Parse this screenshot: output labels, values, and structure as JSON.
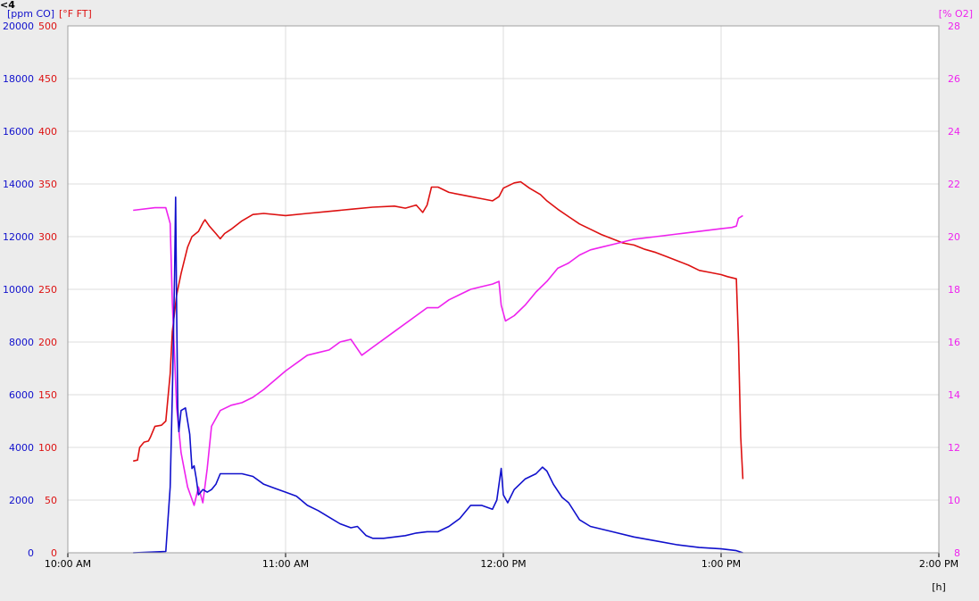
{
  "corner_label": "<4",
  "chart_data": {
    "type": "line",
    "title": "",
    "xlabel": "[h]",
    "grid": true,
    "x_ticks": [
      "10:00 AM",
      "11:00 AM",
      "12:00 PM",
      "1:00 PM",
      "2:00 PM"
    ],
    "x_range_hours": [
      10,
      14
    ],
    "axes": {
      "co": {
        "label": "[ppm CO]",
        "color": "#1010cc",
        "range": [
          0,
          20000
        ],
        "ticks": [
          0,
          2000,
          4000,
          6000,
          8000,
          10000,
          12000,
          14000,
          16000,
          18000,
          20000
        ]
      },
      "temp": {
        "label": "[°F FT]",
        "color": "#dd1111",
        "range": [
          0,
          500
        ],
        "ticks": [
          0,
          50,
          100,
          150,
          200,
          250,
          300,
          350,
          400,
          450,
          500
        ]
      },
      "o2": {
        "label": "[% O2]",
        "color": "#ee22ee",
        "range": [
          8,
          28
        ],
        "ticks": [
          8,
          10,
          12,
          14,
          16,
          18,
          20,
          22,
          24,
          26,
          28
        ]
      }
    },
    "series": [
      {
        "axis": "temp",
        "color": "#dd1111",
        "points": [
          [
            10.3,
            87
          ],
          [
            10.32,
            88
          ],
          [
            10.33,
            100
          ],
          [
            10.35,
            105
          ],
          [
            10.37,
            106
          ],
          [
            10.38,
            110
          ],
          [
            10.4,
            120
          ],
          [
            10.43,
            121
          ],
          [
            10.45,
            125
          ],
          [
            10.47,
            170
          ],
          [
            10.48,
            210
          ],
          [
            10.5,
            245
          ],
          [
            10.52,
            265
          ],
          [
            10.55,
            290
          ],
          [
            10.57,
            300
          ],
          [
            10.6,
            305
          ],
          [
            10.62,
            313
          ],
          [
            10.63,
            316
          ],
          [
            10.65,
            310
          ],
          [
            10.68,
            303
          ],
          [
            10.7,
            298
          ],
          [
            10.72,
            303
          ],
          [
            10.75,
            307
          ],
          [
            10.8,
            315
          ],
          [
            10.85,
            321
          ],
          [
            10.9,
            322
          ],
          [
            11.0,
            320
          ],
          [
            11.1,
            322
          ],
          [
            11.2,
            324
          ],
          [
            11.3,
            326
          ],
          [
            11.4,
            328
          ],
          [
            11.5,
            329
          ],
          [
            11.55,
            327
          ],
          [
            11.6,
            330
          ],
          [
            11.63,
            323
          ],
          [
            11.65,
            330
          ],
          [
            11.67,
            347
          ],
          [
            11.7,
            347
          ],
          [
            11.75,
            342
          ],
          [
            11.8,
            340
          ],
          [
            11.85,
            338
          ],
          [
            11.9,
            336
          ],
          [
            11.95,
            334
          ],
          [
            11.98,
            338
          ],
          [
            12.0,
            346
          ],
          [
            12.05,
            351
          ],
          [
            12.08,
            352
          ],
          [
            12.12,
            346
          ],
          [
            12.17,
            340
          ],
          [
            12.2,
            334
          ],
          [
            12.25,
            326
          ],
          [
            12.3,
            319
          ],
          [
            12.35,
            312
          ],
          [
            12.4,
            307
          ],
          [
            12.45,
            302
          ],
          [
            12.5,
            298
          ],
          [
            12.55,
            294
          ],
          [
            12.6,
            292
          ],
          [
            12.65,
            288
          ],
          [
            12.7,
            285
          ],
          [
            12.75,
            281
          ],
          [
            12.8,
            277
          ],
          [
            12.85,
            273
          ],
          [
            12.9,
            268
          ],
          [
            12.95,
            266
          ],
          [
            13.0,
            264
          ],
          [
            13.03,
            262
          ],
          [
            13.07,
            260
          ],
          [
            13.08,
            200
          ],
          [
            13.09,
            110
          ],
          [
            13.1,
            70
          ]
        ]
      },
      {
        "axis": "o2",
        "color": "#ee22ee",
        "points": [
          [
            10.3,
            21.0
          ],
          [
            10.4,
            21.1
          ],
          [
            10.45,
            21.1
          ],
          [
            10.47,
            20.5
          ],
          [
            10.48,
            17.5
          ],
          [
            10.5,
            13.5
          ],
          [
            10.52,
            11.8
          ],
          [
            10.55,
            10.5
          ],
          [
            10.58,
            9.8
          ],
          [
            10.6,
            10.5
          ],
          [
            10.62,
            9.9
          ],
          [
            10.64,
            11.2
          ],
          [
            10.66,
            12.8
          ],
          [
            10.7,
            13.4
          ],
          [
            10.75,
            13.6
          ],
          [
            10.8,
            13.7
          ],
          [
            10.85,
            13.9
          ],
          [
            10.9,
            14.2
          ],
          [
            11.0,
            14.9
          ],
          [
            11.1,
            15.5
          ],
          [
            11.15,
            15.6
          ],
          [
            11.2,
            15.7
          ],
          [
            11.25,
            16.0
          ],
          [
            11.3,
            16.1
          ],
          [
            11.35,
            15.5
          ],
          [
            11.4,
            15.8
          ],
          [
            11.5,
            16.4
          ],
          [
            11.6,
            17.0
          ],
          [
            11.65,
            17.3
          ],
          [
            11.7,
            17.3
          ],
          [
            11.75,
            17.6
          ],
          [
            11.8,
            17.8
          ],
          [
            11.85,
            18.0
          ],
          [
            11.9,
            18.1
          ],
          [
            11.95,
            18.2
          ],
          [
            11.98,
            18.3
          ],
          [
            11.99,
            17.4
          ],
          [
            12.01,
            16.8
          ],
          [
            12.05,
            17.0
          ],
          [
            12.1,
            17.4
          ],
          [
            12.15,
            17.9
          ],
          [
            12.2,
            18.3
          ],
          [
            12.25,
            18.8
          ],
          [
            12.3,
            19.0
          ],
          [
            12.35,
            19.3
          ],
          [
            12.4,
            19.5
          ],
          [
            12.45,
            19.6
          ],
          [
            12.5,
            19.7
          ],
          [
            12.55,
            19.8
          ],
          [
            12.6,
            19.9
          ],
          [
            12.7,
            20.0
          ],
          [
            12.8,
            20.1
          ],
          [
            12.9,
            20.2
          ],
          [
            13.0,
            20.3
          ],
          [
            13.05,
            20.35
          ],
          [
            13.07,
            20.4
          ],
          [
            13.08,
            20.7
          ],
          [
            13.1,
            20.8
          ]
        ]
      },
      {
        "axis": "co",
        "color": "#1010cc",
        "points": [
          [
            10.3,
            0
          ],
          [
            10.45,
            50
          ],
          [
            10.47,
            2500
          ],
          [
            10.48,
            6000
          ],
          [
            10.49,
            10500
          ],
          [
            10.495,
            13500
          ],
          [
            10.5,
            9000
          ],
          [
            10.505,
            5500
          ],
          [
            10.51,
            4600
          ],
          [
            10.52,
            5400
          ],
          [
            10.54,
            5500
          ],
          [
            10.56,
            4500
          ],
          [
            10.57,
            3200
          ],
          [
            10.58,
            3300
          ],
          [
            10.59,
            2800
          ],
          [
            10.6,
            2200
          ],
          [
            10.62,
            2400
          ],
          [
            10.64,
            2300
          ],
          [
            10.66,
            2400
          ],
          [
            10.68,
            2600
          ],
          [
            10.7,
            3000
          ],
          [
            10.75,
            3000
          ],
          [
            10.8,
            3000
          ],
          [
            10.85,
            2900
          ],
          [
            10.9,
            2600
          ],
          [
            10.95,
            2450
          ],
          [
            11.0,
            2300
          ],
          [
            11.05,
            2150
          ],
          [
            11.1,
            1800
          ],
          [
            11.15,
            1600
          ],
          [
            11.2,
            1350
          ],
          [
            11.25,
            1100
          ],
          [
            11.3,
            950
          ],
          [
            11.33,
            1000
          ],
          [
            11.37,
            650
          ],
          [
            11.4,
            550
          ],
          [
            11.45,
            550
          ],
          [
            11.5,
            600
          ],
          [
            11.55,
            650
          ],
          [
            11.6,
            750
          ],
          [
            11.65,
            800
          ],
          [
            11.7,
            800
          ],
          [
            11.75,
            1000
          ],
          [
            11.8,
            1300
          ],
          [
            11.85,
            1800
          ],
          [
            11.9,
            1800
          ],
          [
            11.95,
            1650
          ],
          [
            11.97,
            2000
          ],
          [
            11.99,
            3200
          ],
          [
            12.0,
            2200
          ],
          [
            12.02,
            1900
          ],
          [
            12.05,
            2400
          ],
          [
            12.1,
            2800
          ],
          [
            12.15,
            3000
          ],
          [
            12.18,
            3250
          ],
          [
            12.2,
            3100
          ],
          [
            12.23,
            2600
          ],
          [
            12.27,
            2100
          ],
          [
            12.3,
            1900
          ],
          [
            12.35,
            1250
          ],
          [
            12.4,
            1000
          ],
          [
            12.5,
            800
          ],
          [
            12.6,
            600
          ],
          [
            12.7,
            450
          ],
          [
            12.8,
            300
          ],
          [
            12.9,
            200
          ],
          [
            13.0,
            150
          ],
          [
            13.07,
            80
          ],
          [
            13.1,
            0
          ]
        ]
      }
    ]
  }
}
